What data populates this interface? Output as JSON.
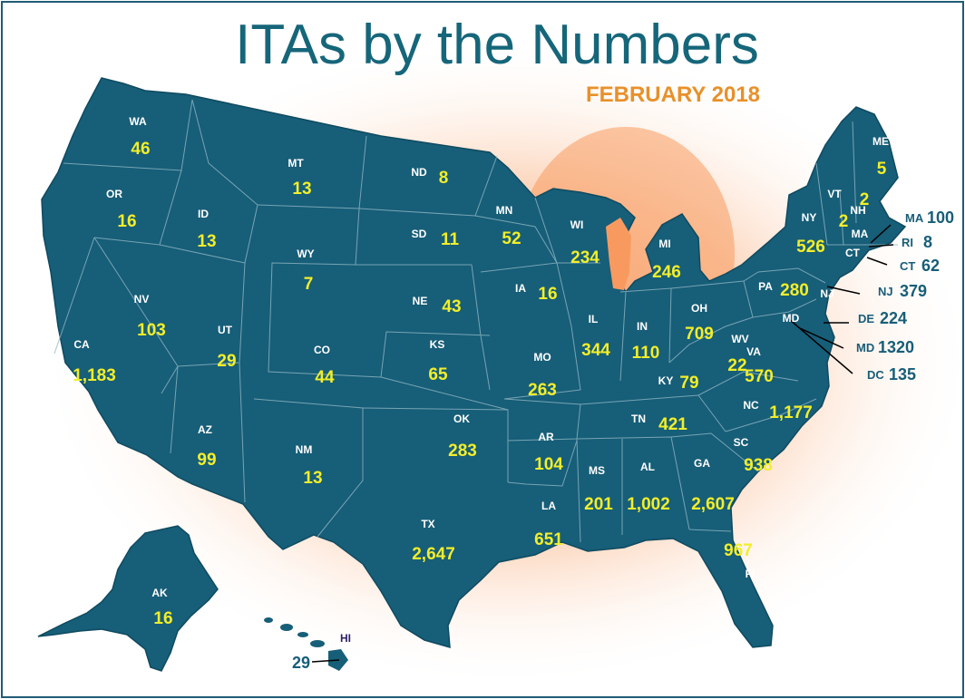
{
  "title": "ITAs by the Numbers",
  "subtitle": "FEBRUARY 2018",
  "colors": {
    "map": "#175e78",
    "title": "#16667a",
    "subtitle": "#e8902a",
    "value_inside": "#f2ee29",
    "callout_text": "#175e78",
    "state_label": "#ffffff",
    "hi_label": "#2e1f6b",
    "glow": "#f7b48d",
    "frame": "#1e5c74"
  },
  "states": [
    {
      "abbr": "WA",
      "value": "46"
    },
    {
      "abbr": "OR",
      "value": "16"
    },
    {
      "abbr": "CA",
      "value": "1,183"
    },
    {
      "abbr": "NV",
      "value": "103"
    },
    {
      "abbr": "ID",
      "value": "13"
    },
    {
      "abbr": "MT",
      "value": "13"
    },
    {
      "abbr": "WY",
      "value": "7"
    },
    {
      "abbr": "UT",
      "value": "29"
    },
    {
      "abbr": "AZ",
      "value": "99"
    },
    {
      "abbr": "CO",
      "value": "44"
    },
    {
      "abbr": "NM",
      "value": "13"
    },
    {
      "abbr": "ND",
      "value": "8"
    },
    {
      "abbr": "SD",
      "value": "11"
    },
    {
      "abbr": "NE",
      "value": "43"
    },
    {
      "abbr": "KS",
      "value": "65"
    },
    {
      "abbr": "OK",
      "value": "283"
    },
    {
      "abbr": "TX",
      "value": "2,647"
    },
    {
      "abbr": "MN",
      "value": "52"
    },
    {
      "abbr": "IA",
      "value": "16"
    },
    {
      "abbr": "MO",
      "value": "263"
    },
    {
      "abbr": "AR",
      "value": "104"
    },
    {
      "abbr": "LA",
      "value": "651"
    },
    {
      "abbr": "WI",
      "value": "234"
    },
    {
      "abbr": "IL",
      "value": "344"
    },
    {
      "abbr": "MI",
      "value": "246"
    },
    {
      "abbr": "IN",
      "value": "110"
    },
    {
      "abbr": "OH",
      "value": "709"
    },
    {
      "abbr": "KY",
      "value": "79"
    },
    {
      "abbr": "TN",
      "value": "421"
    },
    {
      "abbr": "MS",
      "value": "201"
    },
    {
      "abbr": "AL",
      "value": "1,002"
    },
    {
      "abbr": "GA",
      "value": "2,607"
    },
    {
      "abbr": "FL",
      "value": "967"
    },
    {
      "abbr": "SC",
      "value": "938"
    },
    {
      "abbr": "NC",
      "value": "1,177"
    },
    {
      "abbr": "VA",
      "value": "570"
    },
    {
      "abbr": "WV",
      "value": "22"
    },
    {
      "abbr": "PA",
      "value": "280"
    },
    {
      "abbr": "NY",
      "value": "526"
    },
    {
      "abbr": "VT",
      "value": "2"
    },
    {
      "abbr": "NH",
      "value": "2"
    },
    {
      "abbr": "ME",
      "value": "5"
    },
    {
      "abbr": "AK",
      "value": "16"
    }
  ],
  "callouts": [
    {
      "abbr": "MA",
      "value": "100"
    },
    {
      "abbr": "RI",
      "value": "8"
    },
    {
      "abbr": "CT",
      "value": "62"
    },
    {
      "abbr": "NJ",
      "value": "379"
    },
    {
      "abbr": "DE",
      "value": "224"
    },
    {
      "abbr": "MD",
      "value": "1320"
    },
    {
      "abbr": "DC",
      "value": "135"
    }
  ],
  "map_only_labels": [
    "MA",
    "CT",
    "NJ",
    "MD"
  ],
  "hawaii": {
    "abbr": "HI",
    "value": "29"
  }
}
